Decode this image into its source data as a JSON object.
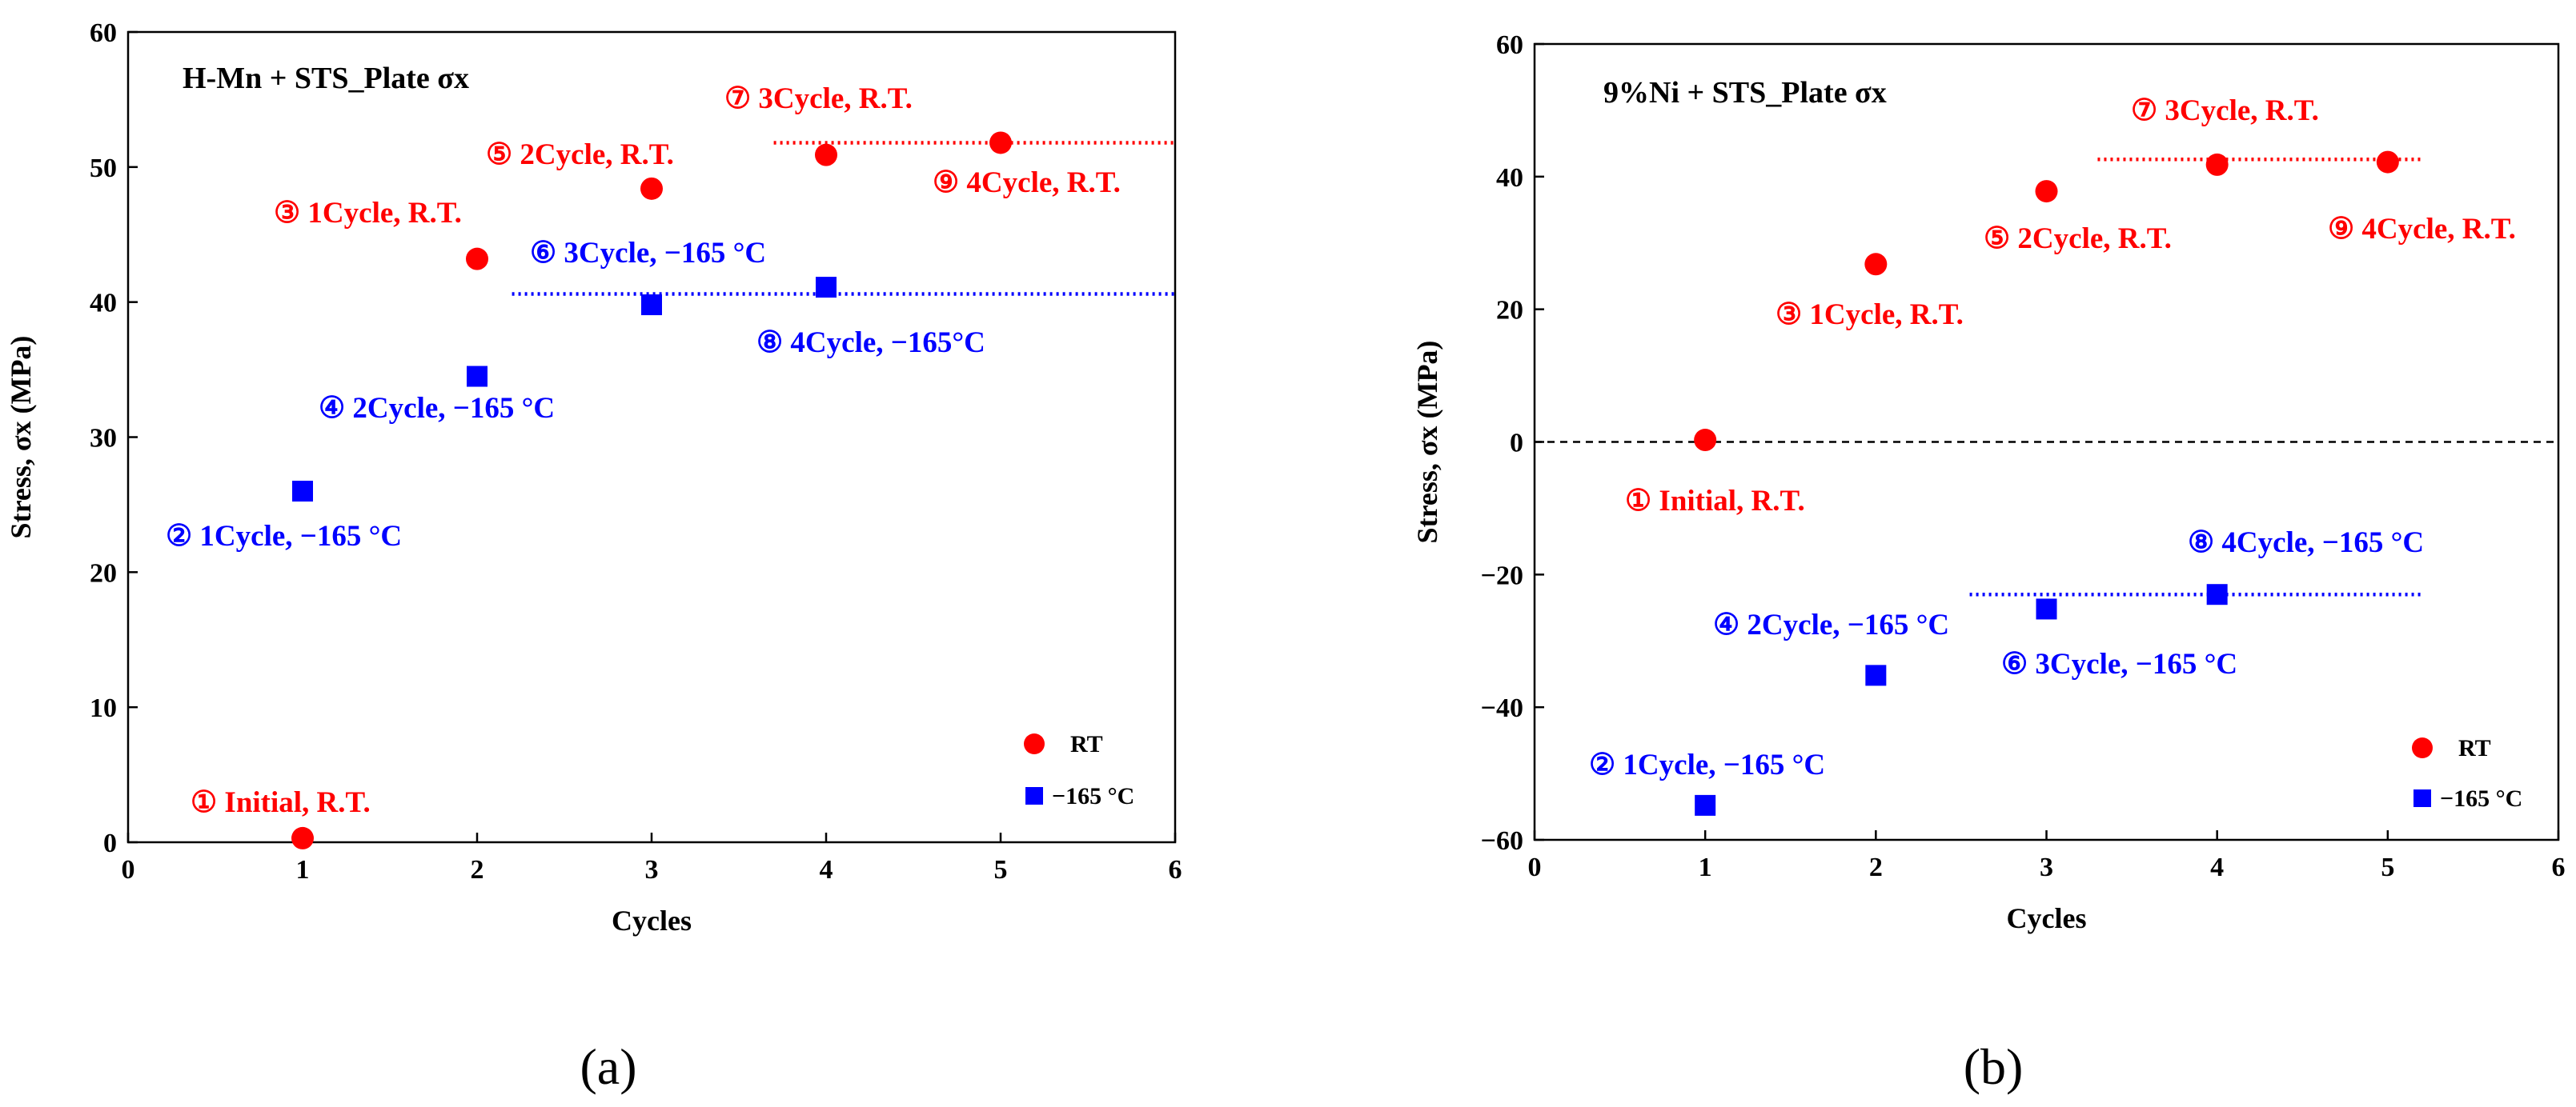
{
  "colors": {
    "rt": "#ff0000",
    "cryo": "#0000ff",
    "axis": "#000000"
  },
  "chart_data": [
    {
      "type": "scatter",
      "panel": "(a)",
      "title": "H-Mn + STS_Plate σx",
      "xlabel": "Cycles",
      "ylabel": "Stress, σx (MPa)",
      "xlim": [
        0,
        6
      ],
      "ylim": [
        0,
        60
      ],
      "xticks": [
        0,
        1,
        2,
        3,
        4,
        5,
        6
      ],
      "yticks": [
        0,
        10,
        20,
        30,
        40,
        50,
        60
      ],
      "zero_line": false,
      "legend": {
        "position": "bottom-right",
        "entries": [
          "RT",
          "−165 °C"
        ]
      },
      "series": [
        {
          "name": "RT",
          "marker": "circle",
          "x": [
            1,
            2,
            3,
            4,
            5
          ],
          "y": [
            0.3,
            43.2,
            48.4,
            50.9,
            51.8
          ],
          "labels": [
            "① Initial, R.T.",
            "③ 1Cycle, R.T.",
            "⑤ 2Cycle, R.T.",
            "⑦ 3Cycle, R.T.",
            "⑨ 4Cycle, R.T."
          ],
          "reference_line": {
            "y": 51.8,
            "x": [
              3.7,
              6
            ]
          }
        },
        {
          "name": "−165 °C",
          "marker": "square",
          "x": [
            1,
            2,
            3,
            4
          ],
          "y": [
            26.0,
            34.5,
            39.8,
            41.1
          ],
          "labels": [
            "② 1Cycle, −165 °C",
            "④ 2Cycle, −165 °C",
            "⑥ 3Cycle, −165 °C",
            "⑧ 4Cycle, −165°C"
          ],
          "reference_line": {
            "y": 40.6,
            "x": [
              2.2,
              6
            ]
          }
        }
      ]
    },
    {
      "type": "scatter",
      "panel": "(b)",
      "title": "9%Ni + STS_Plate σx",
      "xlabel": "Cycles",
      "ylabel": "Stress, σx (MPa)",
      "xlim": [
        0,
        6
      ],
      "ylim": [
        -60,
        60
      ],
      "xticks": [
        0,
        1,
        2,
        3,
        4,
        5,
        6
      ],
      "yticks": [
        -60,
        -40,
        -20,
        0,
        20,
        40,
        60
      ],
      "zero_line": true,
      "legend": {
        "position": "bottom-right",
        "entries": [
          "RT",
          "−165 °C"
        ]
      },
      "series": [
        {
          "name": "RT",
          "marker": "circle",
          "x": [
            1,
            2,
            3,
            4,
            5
          ],
          "y": [
            0.3,
            26.8,
            37.8,
            41.8,
            42.2
          ],
          "labels": [
            "① Initial, R.T.",
            "③ 1Cycle, R.T.",
            "⑤ 2Cycle, R.T.",
            "⑦ 3Cycle, R.T.",
            "⑨ 4Cycle, R.T."
          ],
          "reference_line": {
            "y": 42.6,
            "x": [
              3.3,
              5.2
            ]
          }
        },
        {
          "name": "−165 °C",
          "marker": "square",
          "x": [
            1,
            2,
            3,
            4
          ],
          "y": [
            -54.8,
            -35.2,
            -25.2,
            -23.0
          ],
          "labels": [
            "② 1Cycle, −165 °C",
            "④ 2Cycle, −165 °C",
            "⑥ 3Cycle, −165 °C",
            "⑧ 4Cycle, −165 °C"
          ],
          "reference_line": {
            "y": -23.0,
            "x": [
              2.55,
              5.2
            ]
          }
        }
      ]
    }
  ]
}
